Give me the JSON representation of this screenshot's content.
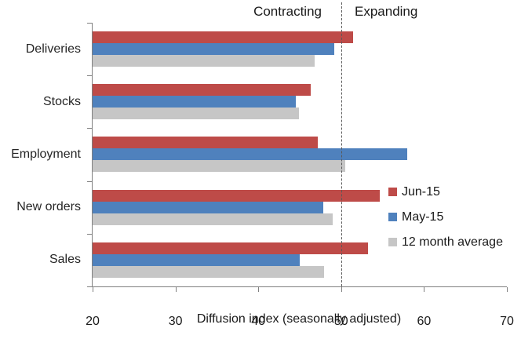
{
  "chart_data": {
    "type": "bar",
    "orientation": "horizontal",
    "title": "",
    "xlabel": "Diffusion index (seasonally adjusted)",
    "ylabel": "",
    "xlim": [
      20,
      70
    ],
    "xticks": [
      20,
      30,
      40,
      50,
      60,
      70
    ],
    "grid": false,
    "legend_position": "right-middle",
    "categories": [
      "Deliveries",
      "Stocks",
      "Employment",
      "New orders",
      "Sales"
    ],
    "series": [
      {
        "name": "Jun-15",
        "color": "#be4b48",
        "values": [
          51.4,
          46.3,
          47.2,
          54.7,
          53.2
        ]
      },
      {
        "name": "May-15",
        "color": "#4f81bd",
        "values": [
          49.2,
          44.5,
          58.0,
          47.8,
          45.0
        ]
      },
      {
        "name": "12 month average",
        "color": "#c6c6c6",
        "values": [
          46.8,
          44.9,
          50.5,
          49.0,
          47.9
        ]
      }
    ],
    "reference_line": {
      "value": 50,
      "style": "dashed",
      "color": "#595959"
    },
    "annotations": {
      "left_of_reference": "Contracting",
      "right_of_reference": "Expanding"
    }
  },
  "styles": {
    "axis_color": "#808080",
    "text_color": "#1a1a1a"
  }
}
